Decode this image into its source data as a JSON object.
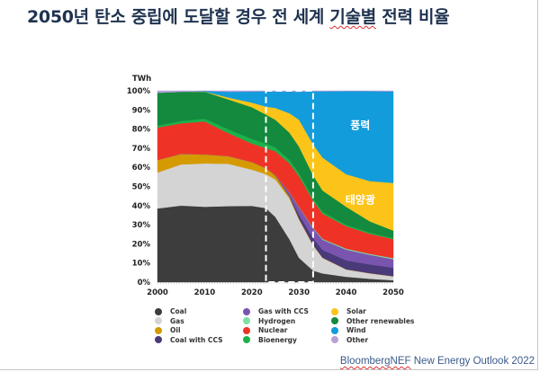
{
  "title": {
    "before": "2050년 탄소 중립에 도달할 경우 전 세계 ",
    "underlined": "기술별",
    "after": " 전력 비율"
  },
  "source": {
    "underlined": "BloombergNEF",
    "after": " New Energy Outlook 2022"
  },
  "chart_data": {
    "type": "area",
    "stacked": true,
    "normalized_percent": true,
    "title": "2050년 탄소 중립에 도달할 경우 전 세계 기술별 전력 비율",
    "unit_label": "TWh",
    "xlabel": "",
    "ylabel": "",
    "xlim": [
      2000,
      2050
    ],
    "ylim": [
      0,
      100
    ],
    "x_ticks": [
      "2000",
      "2010",
      "2020",
      "2030",
      "2040",
      "2050"
    ],
    "y_ticks": [
      "0%",
      "10%",
      "20%",
      "30%",
      "40%",
      "50%",
      "60%",
      "70%",
      "80%",
      "90%",
      "100%"
    ],
    "highlight_range": [
      2023,
      2033
    ],
    "legend_position": "bottom",
    "annotations": [
      {
        "text": "풍력",
        "series": "Wind"
      },
      {
        "text": "태양광",
        "series": "Solar"
      }
    ],
    "x": [
      2000,
      2005,
      2010,
      2015,
      2020,
      2023,
      2025,
      2028,
      2030,
      2033,
      2035,
      2040,
      2045,
      2050
    ],
    "series": [
      {
        "name": "Coal",
        "color": "#3d3d3d",
        "values": [
          38.5,
          40,
          39.4,
          39.5,
          38.5,
          37,
          33,
          22,
          12.7,
          6,
          4.5,
          2.8,
          1.8,
          1
        ]
      },
      {
        "name": "Gas",
        "color": "#d4d4d4",
        "values": [
          18.8,
          21.5,
          22.6,
          22,
          18.3,
          17,
          19,
          21,
          20,
          13,
          8,
          3.8,
          2.8,
          2
        ]
      },
      {
        "name": "Oil",
        "color": "#d49a00",
        "values": [
          6.5,
          5.5,
          4.7,
          4,
          3.8,
          3,
          2,
          1,
          0.5,
          0.3,
          0.2,
          0.1,
          0.1,
          0.1
        ]
      },
      {
        "name": "Coal with CCS",
        "color": "#4a3a7a",
        "values": [
          0,
          0,
          0,
          0,
          0,
          0,
          0,
          0.5,
          2,
          3.5,
          4,
          4.7,
          4.6,
          4.5
        ]
      },
      {
        "name": "Gas with CCS",
        "color": "#7a55b0",
        "values": [
          0,
          0,
          0,
          0,
          0,
          0,
          0.3,
          1.5,
          4,
          5,
          5.3,
          5.6,
          5,
          4.5
        ]
      },
      {
        "name": "Hydrogen",
        "color": "#7de0a0",
        "values": [
          0,
          0,
          0,
          0,
          0,
          0,
          0,
          0.1,
          0.2,
          0.3,
          0.4,
          0.5,
          0.5,
          0.5
        ]
      },
      {
        "name": "Nuclear",
        "color": "#ee3326",
        "values": [
          17,
          16,
          17.3,
          12,
          9.4,
          10,
          12,
          15,
          16,
          14,
          13,
          11.7,
          10.5,
          10
        ]
      },
      {
        "name": "Bioenergy",
        "color": "#1bb24b",
        "values": [
          1,
          1.2,
          1.4,
          2,
          2.3,
          2.3,
          2,
          1.8,
          1.5,
          1.2,
          1,
          0.8,
          0.6,
          0.5
        ]
      },
      {
        "name": "Other renewables",
        "color": "#138a3e",
        "values": [
          17.2,
          15.3,
          14.1,
          15.5,
          16,
          14.5,
          14,
          14,
          14,
          12,
          11,
          9.4,
          5.9,
          4
        ]
      },
      {
        "name": "Solar",
        "color": "#fcc419",
        "values": [
          0,
          0,
          0.1,
          1,
          2.3,
          4,
          6,
          10,
          14,
          16,
          17,
          17,
          21,
          25
        ]
      },
      {
        "name": "Wind",
        "color": "#129cdc",
        "values": [
          0,
          0,
          0.3,
          3,
          5.6,
          7.6,
          8.3,
          11.2,
          14.6,
          27.4,
          34.3,
          43.4,
          47,
          48
        ]
      },
      {
        "name": "Other",
        "color": "#b8a0d8",
        "values": [
          1,
          0.5,
          0.1,
          0.5,
          0.4,
          0.3,
          0.4,
          0.4,
          0.5,
          0.3,
          0.3,
          0.2,
          0.2,
          0.4
        ]
      }
    ]
  }
}
